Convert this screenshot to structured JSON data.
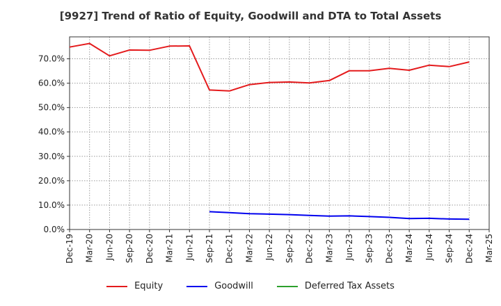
{
  "chart_data": {
    "type": "line",
    "title": "[9927]  Trend of Ratio of Equity, Goodwill and DTA to Total Assets",
    "xlabel": "",
    "ylabel": "",
    "ylim": [
      0,
      0.79
    ],
    "y_ticks": [
      0,
      0.1,
      0.2,
      0.3,
      0.4,
      0.5,
      0.6,
      0.7
    ],
    "y_tick_labels": [
      "0.0%",
      "10.0%",
      "20.0%",
      "30.0%",
      "40.0%",
      "50.0%",
      "60.0%",
      "70.0%"
    ],
    "x": [
      "Dec-19",
      "Mar-20",
      "Jun-20",
      "Sep-20",
      "Dec-20",
      "Mar-21",
      "Jun-21",
      "Sep-21",
      "Dec-21",
      "Mar-22",
      "Jun-22",
      "Sep-22",
      "Dec-22",
      "Mar-23",
      "Jun-23",
      "Sep-23",
      "Dec-23",
      "Mar-24",
      "Jun-24",
      "Sep-24",
      "Dec-24",
      "Mar-25"
    ],
    "grid": true,
    "legend_position": "bottom",
    "series": [
      {
        "name": "Equity",
        "color": "#e41a1c",
        "values": [
          0.748,
          0.763,
          0.712,
          0.736,
          0.735,
          0.752,
          0.753,
          0.572,
          0.568,
          0.594,
          0.603,
          0.605,
          0.601,
          0.611,
          0.651,
          0.651,
          0.661,
          0.653,
          0.674,
          0.668,
          0.687,
          null
        ]
      },
      {
        "name": "Goodwill",
        "color": "#0000ee",
        "values": [
          null,
          null,
          null,
          null,
          null,
          null,
          null,
          0.073,
          0.069,
          0.065,
          0.063,
          0.061,
          0.058,
          0.055,
          0.056,
          0.053,
          0.05,
          0.045,
          0.046,
          0.043,
          0.042,
          null
        ]
      },
      {
        "name": "Deferred Tax Assets",
        "color": "#2ca02c",
        "values": [
          null,
          null,
          null,
          null,
          null,
          null,
          null,
          null,
          null,
          null,
          null,
          null,
          null,
          null,
          null,
          null,
          null,
          null,
          null,
          null,
          null,
          null
        ]
      }
    ]
  }
}
